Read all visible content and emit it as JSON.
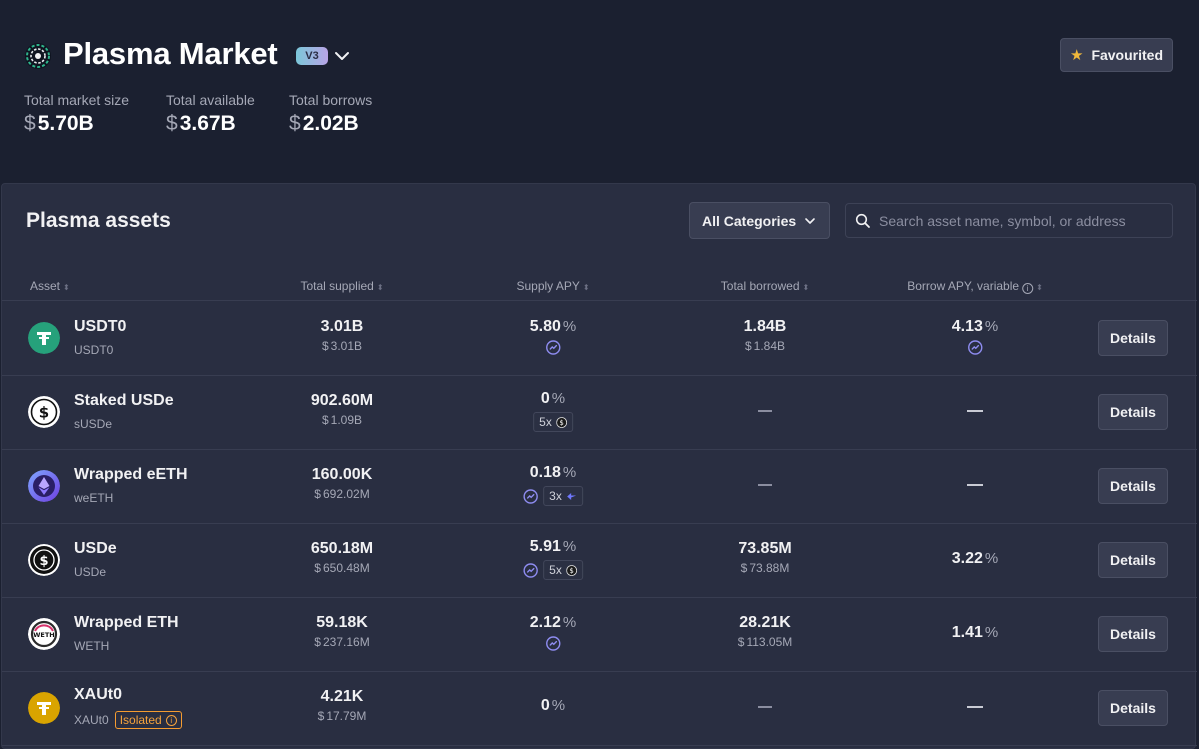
{
  "header": {
    "title": "Plasma Market",
    "version": "V3",
    "favourite_label": "Favourited",
    "stats": [
      {
        "label": "Total market size",
        "currency": "$",
        "value": "5.70B"
      },
      {
        "label": "Total available",
        "currency": "$",
        "value": "3.67B"
      },
      {
        "label": "Total borrows",
        "currency": "$",
        "value": "2.02B"
      }
    ]
  },
  "panel": {
    "title": "Plasma assets",
    "category_select": "All Categories",
    "search_placeholder": "Search asset name, symbol, or address"
  },
  "columns": {
    "asset": "Asset",
    "total_supplied": "Total supplied",
    "supply_apy": "Supply APY",
    "total_borrowed": "Total borrowed",
    "borrow_apy": "Borrow APY, variable"
  },
  "colors": {
    "background": "#1b2030",
    "panel": "#292e41",
    "usdt0": "#26a17b",
    "weeth": "#6e5be8",
    "xaut0": "#d9a400",
    "isolated": "#f59c31",
    "star": "#f0b83c"
  },
  "percent_sign": "%",
  "details_label": "Details",
  "assets": [
    {
      "name": "USDT0",
      "symbol": "USDT0",
      "icon": "usdt0-icon",
      "supplied": "3.01B",
      "supplied_usd": "3.01B",
      "supply_apy": "5.80",
      "supply_incentive": true,
      "supply_multiplier": "",
      "borrowed": "1.84B",
      "borrowed_usd": "1.84B",
      "borrow_apy": "4.13",
      "borrow_incentive": true
    },
    {
      "name": "Staked USDe",
      "symbol": "sUSDe",
      "icon": "susde-icon",
      "supplied": "902.60M",
      "supplied_usd": "1.09B",
      "supply_apy": "0",
      "supply_incentive": false,
      "supply_multiplier": "5x",
      "borrowed": "",
      "borrowed_usd": "",
      "borrow_apy": "",
      "borrow_incentive": false
    },
    {
      "name": "Wrapped eETH",
      "symbol": "weETH",
      "icon": "weeth-icon",
      "supplied": "160.00K",
      "supplied_usd": "692.02M",
      "supply_apy": "0.18",
      "supply_incentive": true,
      "supply_multiplier": "3x",
      "borrowed": "",
      "borrowed_usd": "",
      "borrow_apy": "",
      "borrow_incentive": false
    },
    {
      "name": "USDe",
      "symbol": "USDe",
      "icon": "usde-icon",
      "supplied": "650.18M",
      "supplied_usd": "650.48M",
      "supply_apy": "5.91",
      "supply_incentive": true,
      "supply_multiplier": "5x",
      "borrowed": "73.85M",
      "borrowed_usd": "73.88M",
      "borrow_apy": "3.22",
      "borrow_incentive": false
    },
    {
      "name": "Wrapped ETH",
      "symbol": "WETH",
      "icon": "weth-icon",
      "supplied": "59.18K",
      "supplied_usd": "237.16M",
      "supply_apy": "2.12",
      "supply_incentive": true,
      "supply_multiplier": "",
      "borrowed": "28.21K",
      "borrowed_usd": "113.05M",
      "borrow_apy": "1.41",
      "borrow_incentive": false
    },
    {
      "name": "XAUt0",
      "symbol": "XAUt0",
      "icon": "xaut0-icon",
      "badge": "Isolated",
      "supplied": "4.21K",
      "supplied_usd": "17.79M",
      "supply_apy": "0",
      "supply_incentive": false,
      "supply_multiplier": "",
      "borrowed": "",
      "borrowed_usd": "",
      "borrow_apy": "",
      "borrow_incentive": false
    }
  ]
}
